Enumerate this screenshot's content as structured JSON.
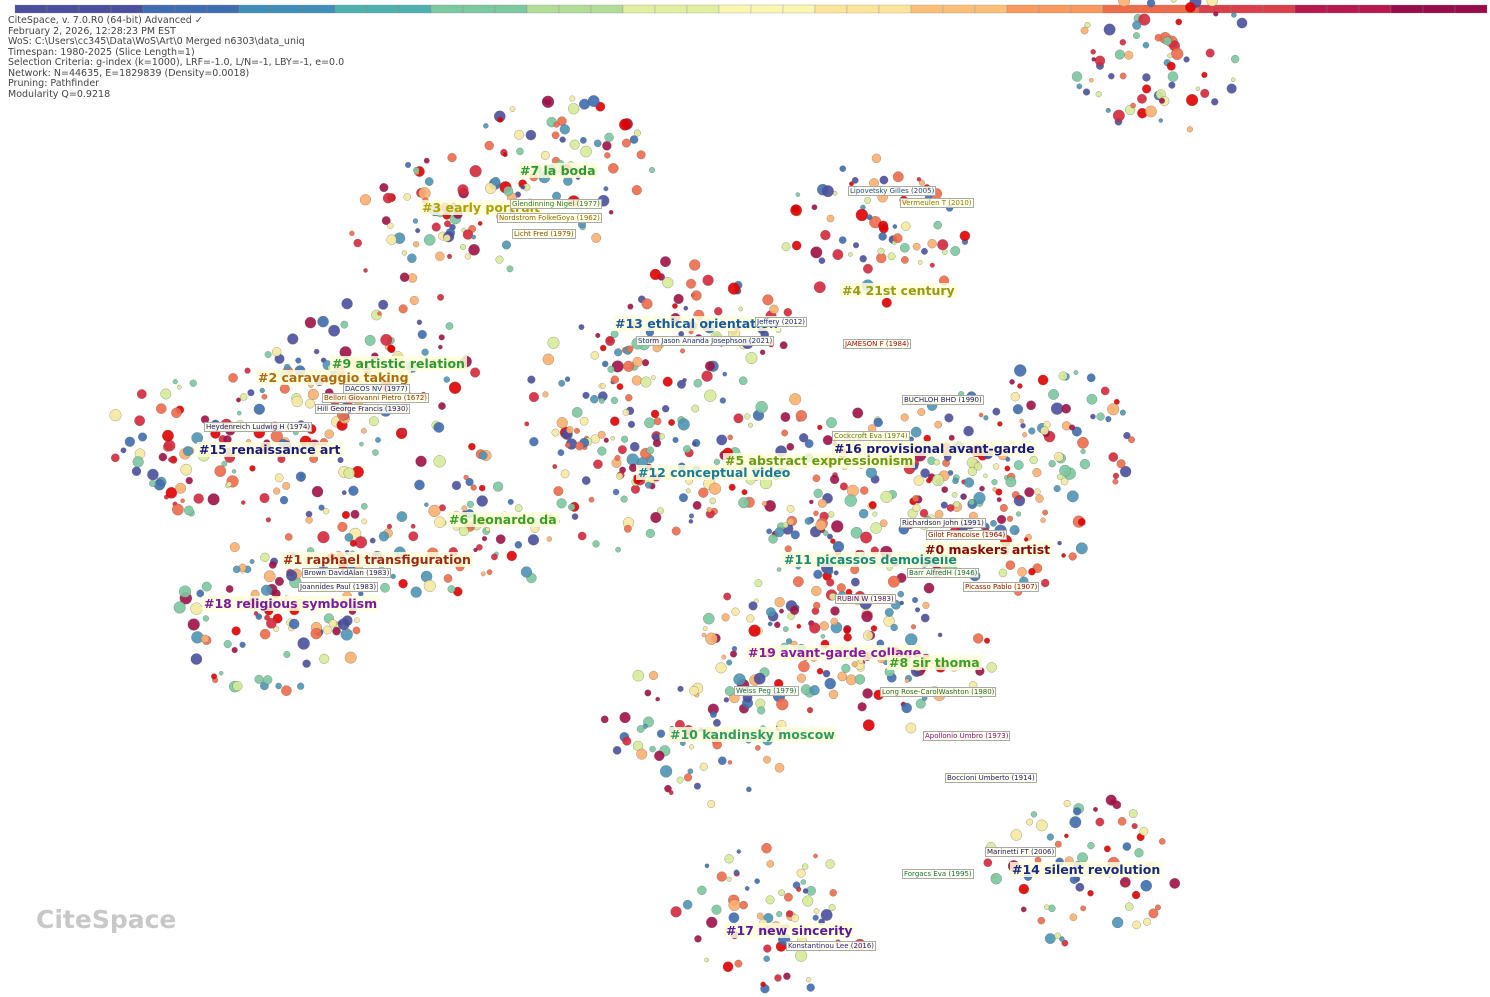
{
  "header": {
    "lines": [
      "CiteSpace, v. 7.0.R0 (64-bit) Advanced ✓",
      "February 2, 2026, 12:28:23 PM EST",
      "WoS: C:\\Users\\cc345\\Data\\WoS\\Art\\0 Merged n6303\\data_uniq",
      "Timespan: 1980-2025 (Slice Length=1)",
      "Selection Criteria: g-index (k=1000), LRF=-1.0, L/N=-1, LBY=-1, e=0.0",
      "Network: N=44635, E=1829839 (Density=0.0018)",
      "Pruning: Pathfinder",
      "Modularity Q=0.9218"
    ]
  },
  "clusters": [
    "#7 la boda",
    "#3 early portrait",
    "#4 21st century",
    "#13 ethical orientation",
    "#9 artistic relation",
    "#2 caravaggio taking",
    "#15 renaissance art",
    "#16 provisional avant-garde",
    "#5 abstract expressionism",
    "#12 conceptual video",
    "#6 leonardo da",
    "#1 raphael transfiguration",
    "#11 picassos demoiselle",
    "#0 maskers artist",
    "#18 religious symbolism",
    "#19 avant-garde collage",
    "#8 sir thoma",
    "#10 kandinsky moscow",
    "#14 silent revolution",
    "#17 new sincerity"
  ],
  "references": [
    "Glendinning Nigel (1977)",
    "Nordstrom FolkeGoya (1962)",
    "Licht Fred (1979)",
    "Lipovetsky Gilles (2005)",
    "Vermeulen T (2010)",
    "Jeffery (2012)",
    "Storm Jason Ananda Josephson (2021)",
    "JAMESON F (1984)",
    "DACOS NV (1977)",
    "Bellori Giovanni Pietro (1672)",
    "Hill George Francis (1930)",
    "Heydenreich Ludwig H (1974)",
    "BUCHLOH BHD (1990)",
    "Cockcroft Eva (1974)",
    "Richardson John (1991)",
    "Gilot Francoise (1964)",
    "Barr AlfredH (1946)",
    "Picasso Pablo (1907)",
    "RUBIN W (1983)",
    "Brown DavidAlan (1983)",
    "Joannides Paul (1983)",
    "Weiss Peg (1979)",
    "Long Rose-CarolWashton (1980)",
    "Apollonio Umbro (1973)",
    "Boccioni Umberto (1914)",
    "Marinetti FT (2006)",
    "Forgacs Eva (1995)",
    "Konstantinou Lee (2016)"
  ],
  "logo": "CiteSpace"
}
